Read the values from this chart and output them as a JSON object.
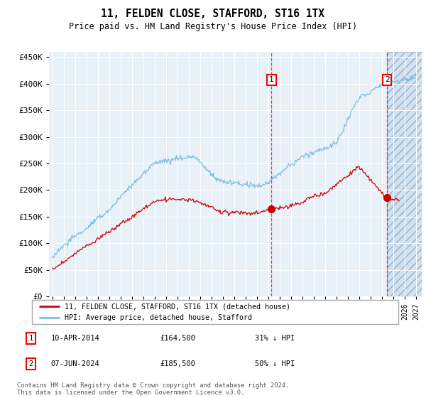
{
  "title": "11, FELDEN CLOSE, STAFFORD, ST16 1TX",
  "subtitle": "Price paid vs. HM Land Registry's House Price Index (HPI)",
  "ylabel_ticks": [
    "£0",
    "£50K",
    "£100K",
    "£150K",
    "£200K",
    "£250K",
    "£300K",
    "£350K",
    "£400K",
    "£450K"
  ],
  "ytick_values": [
    0,
    50000,
    100000,
    150000,
    200000,
    250000,
    300000,
    350000,
    400000,
    450000
  ],
  "ylim": [
    0,
    460000
  ],
  "xlim_start": 1994.7,
  "xlim_end": 2027.5,
  "hpi_color": "#7fbfdf",
  "property_color": "#cc0000",
  "transaction1_year": 2014.28,
  "transaction1_price": 164500,
  "transaction2_year": 2024.44,
  "transaction2_price": 185500,
  "hatch_start": 2024.44,
  "legend_property": "11, FELDEN CLOSE, STAFFORD, ST16 1TX (detached house)",
  "legend_hpi": "HPI: Average price, detached house, Stafford",
  "note1_label": "1",
  "note1_date": "10-APR-2014",
  "note1_price": "£164,500",
  "note1_hpi": "31% ↓ HPI",
  "note2_label": "2",
  "note2_date": "07-JUN-2024",
  "note2_price": "£185,500",
  "note2_hpi": "50% ↓ HPI",
  "footer": "Contains HM Land Registry data © Crown copyright and database right 2024.\nThis data is licensed under the Open Government Licence v3.0.",
  "background_color": "#e8f0f8",
  "hatch_color": "#c8ddf0"
}
